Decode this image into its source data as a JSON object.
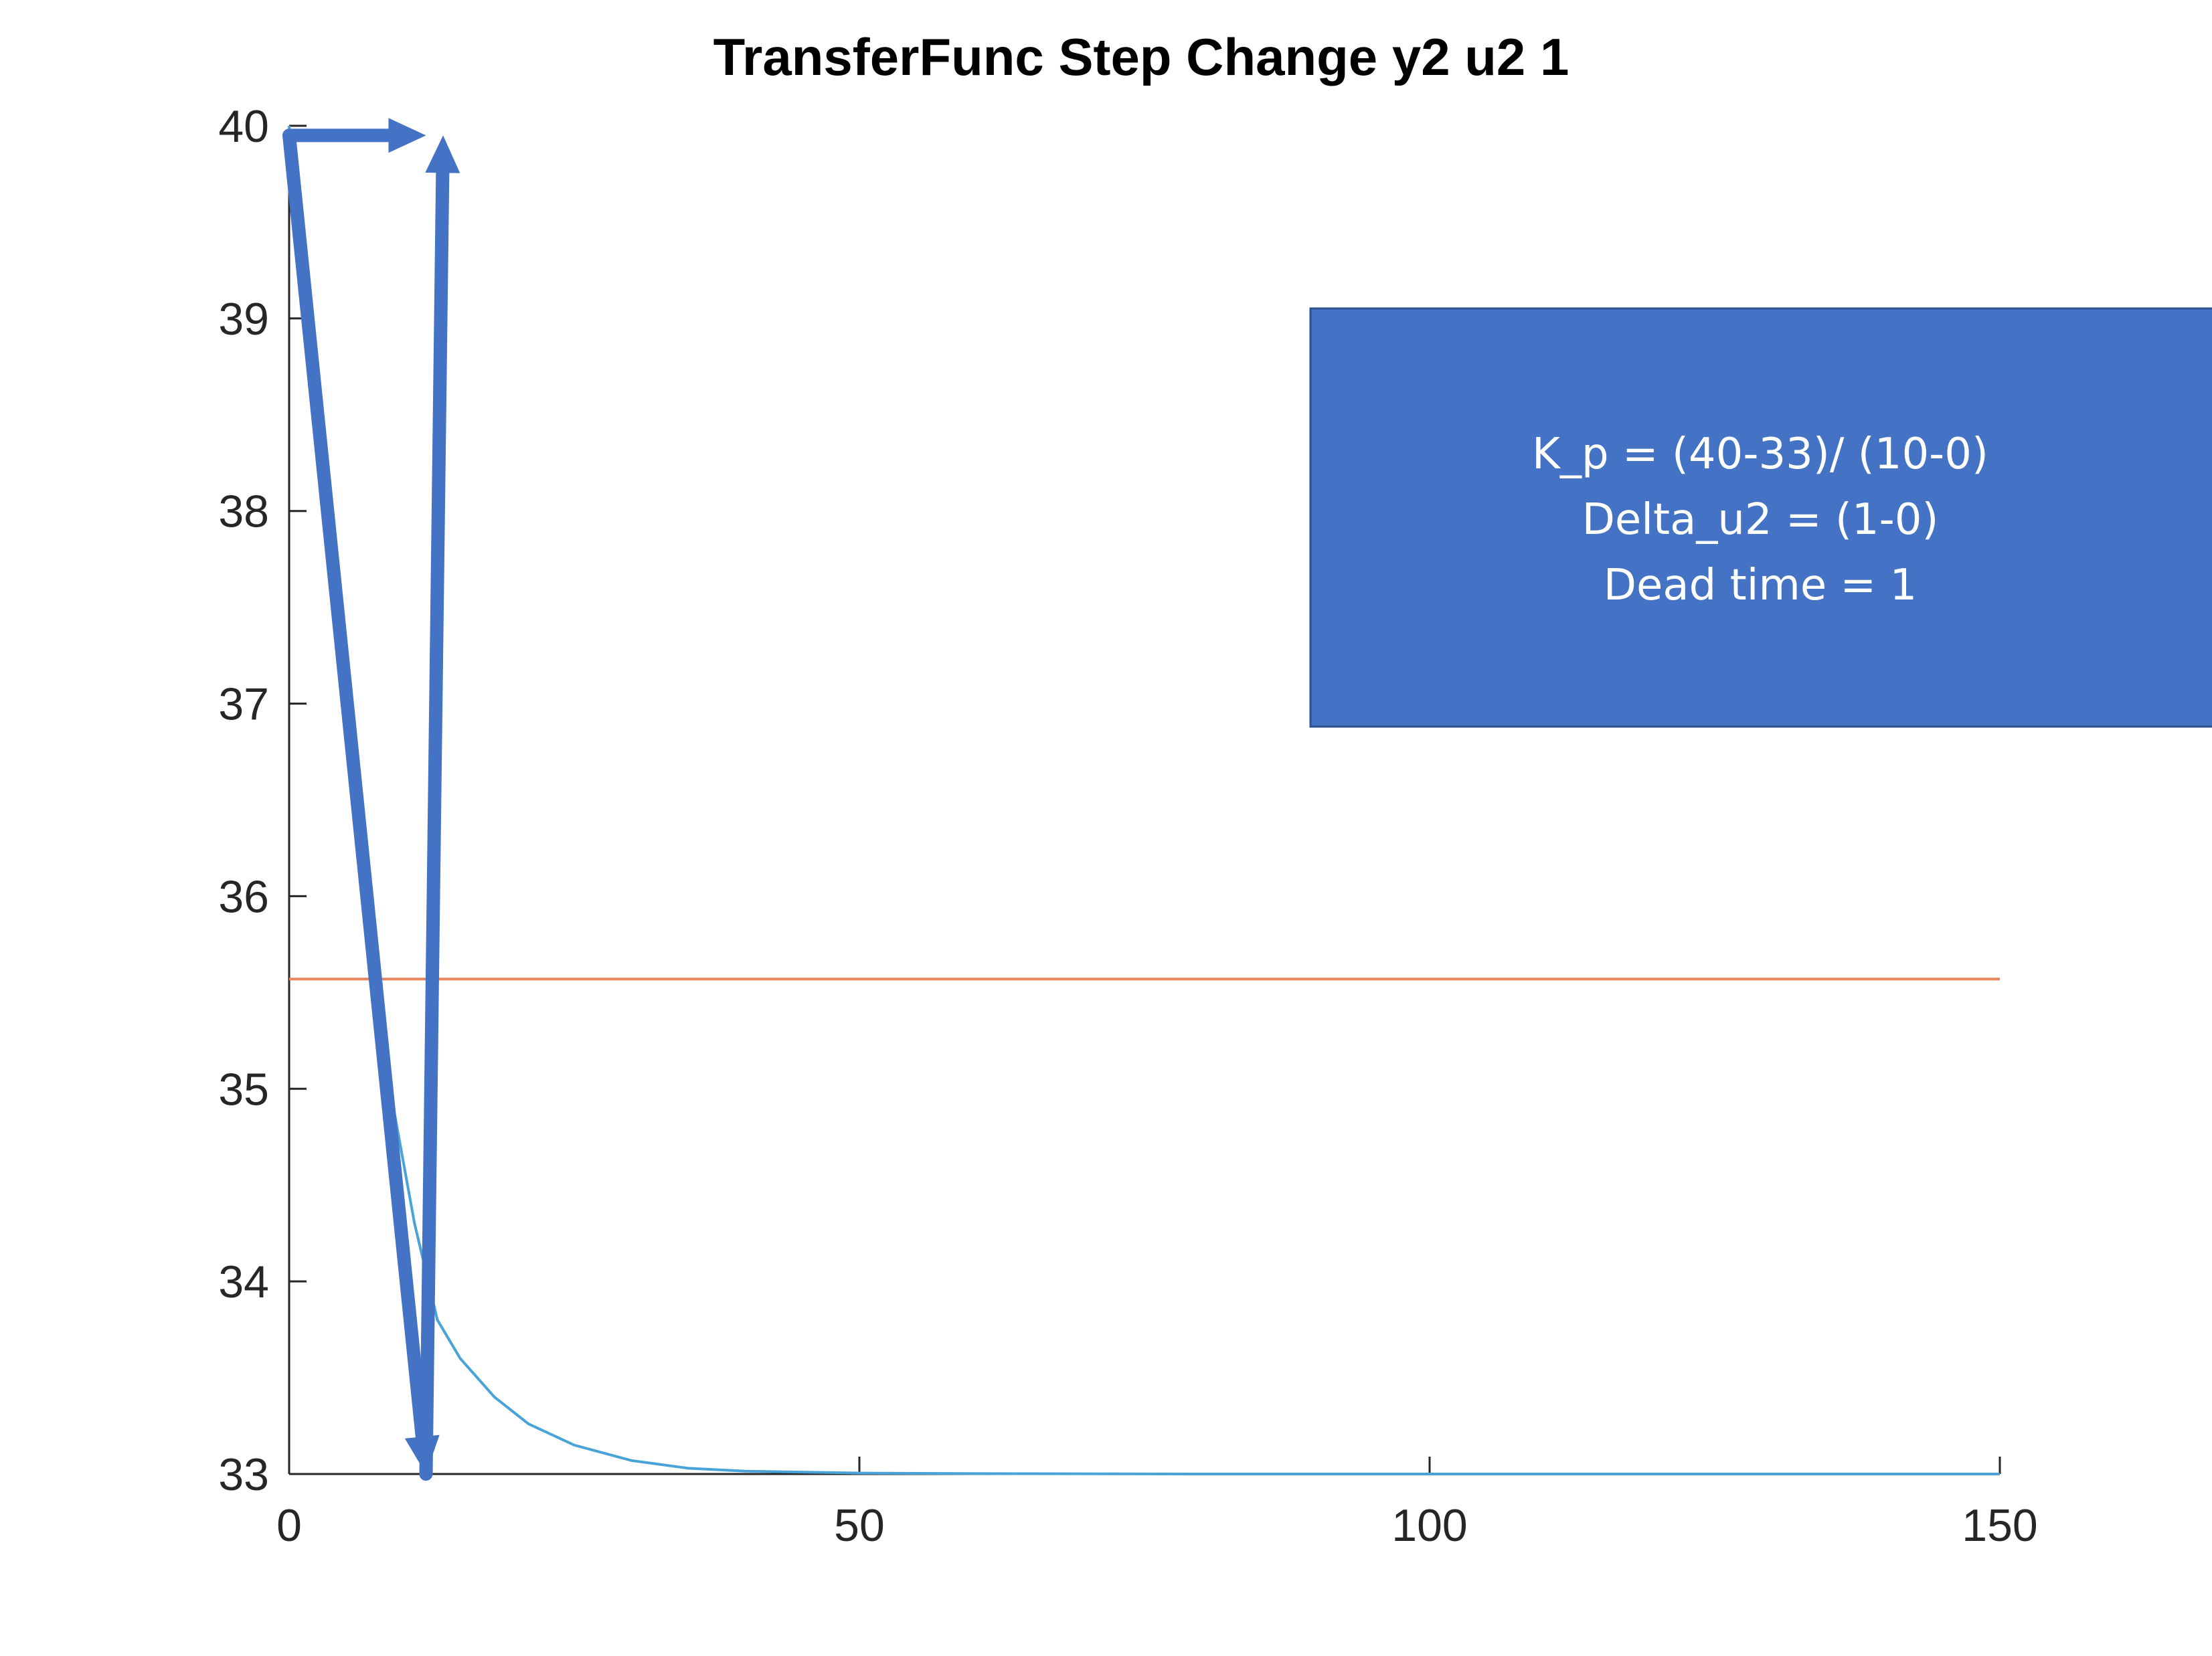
{
  "chart_data": {
    "type": "line",
    "title": "TransferFunc Step Change y2 u2 1",
    "xlabel": "",
    "ylabel": "",
    "xlim": [
      0,
      150
    ],
    "ylim": [
      33,
      40
    ],
    "xticks": [
      0,
      50,
      100,
      150
    ],
    "yticks": [
      33,
      34,
      35,
      36,
      37,
      38,
      39,
      40
    ],
    "grid": false,
    "series": [
      {
        "color": "#4aa3d8",
        "x": [
          0,
          1,
          3,
          5,
          7,
          9,
          11,
          13,
          15,
          18,
          21,
          25,
          30,
          35,
          40,
          50,
          60,
          80,
          100,
          120,
          150
        ],
        "y": [
          40,
          39.3,
          37.96,
          36.79,
          35.8,
          34.95,
          34.3,
          33.8,
          33.6,
          33.4,
          33.26,
          33.15,
          33.07,
          33.03,
          33.015,
          33.005,
          33.002,
          33.0,
          33.0,
          33.0,
          33.0
        ]
      },
      {
        "color": "#e8855a",
        "x": [
          0,
          150
        ],
        "y": [
          35.57,
          35.57
        ]
      }
    ],
    "annotations": {
      "arrow_color": "#4472c4",
      "arrows": [
        {
          "from": [
            0,
            39.95
          ],
          "to": [
            12,
            39.95
          ]
        },
        {
          "from": [
            0,
            39.95
          ],
          "to": [
            12,
            33.0
          ]
        },
        {
          "from": [
            12,
            33.0
          ],
          "to": [
            13.5,
            39.95
          ]
        }
      ],
      "note": {
        "fill": "#4472c4",
        "lines": [
          "K_p = (40-33)/ (10-0)",
          "Delta_u2 = (1-0)",
          "Dead time = 1"
        ]
      }
    }
  }
}
